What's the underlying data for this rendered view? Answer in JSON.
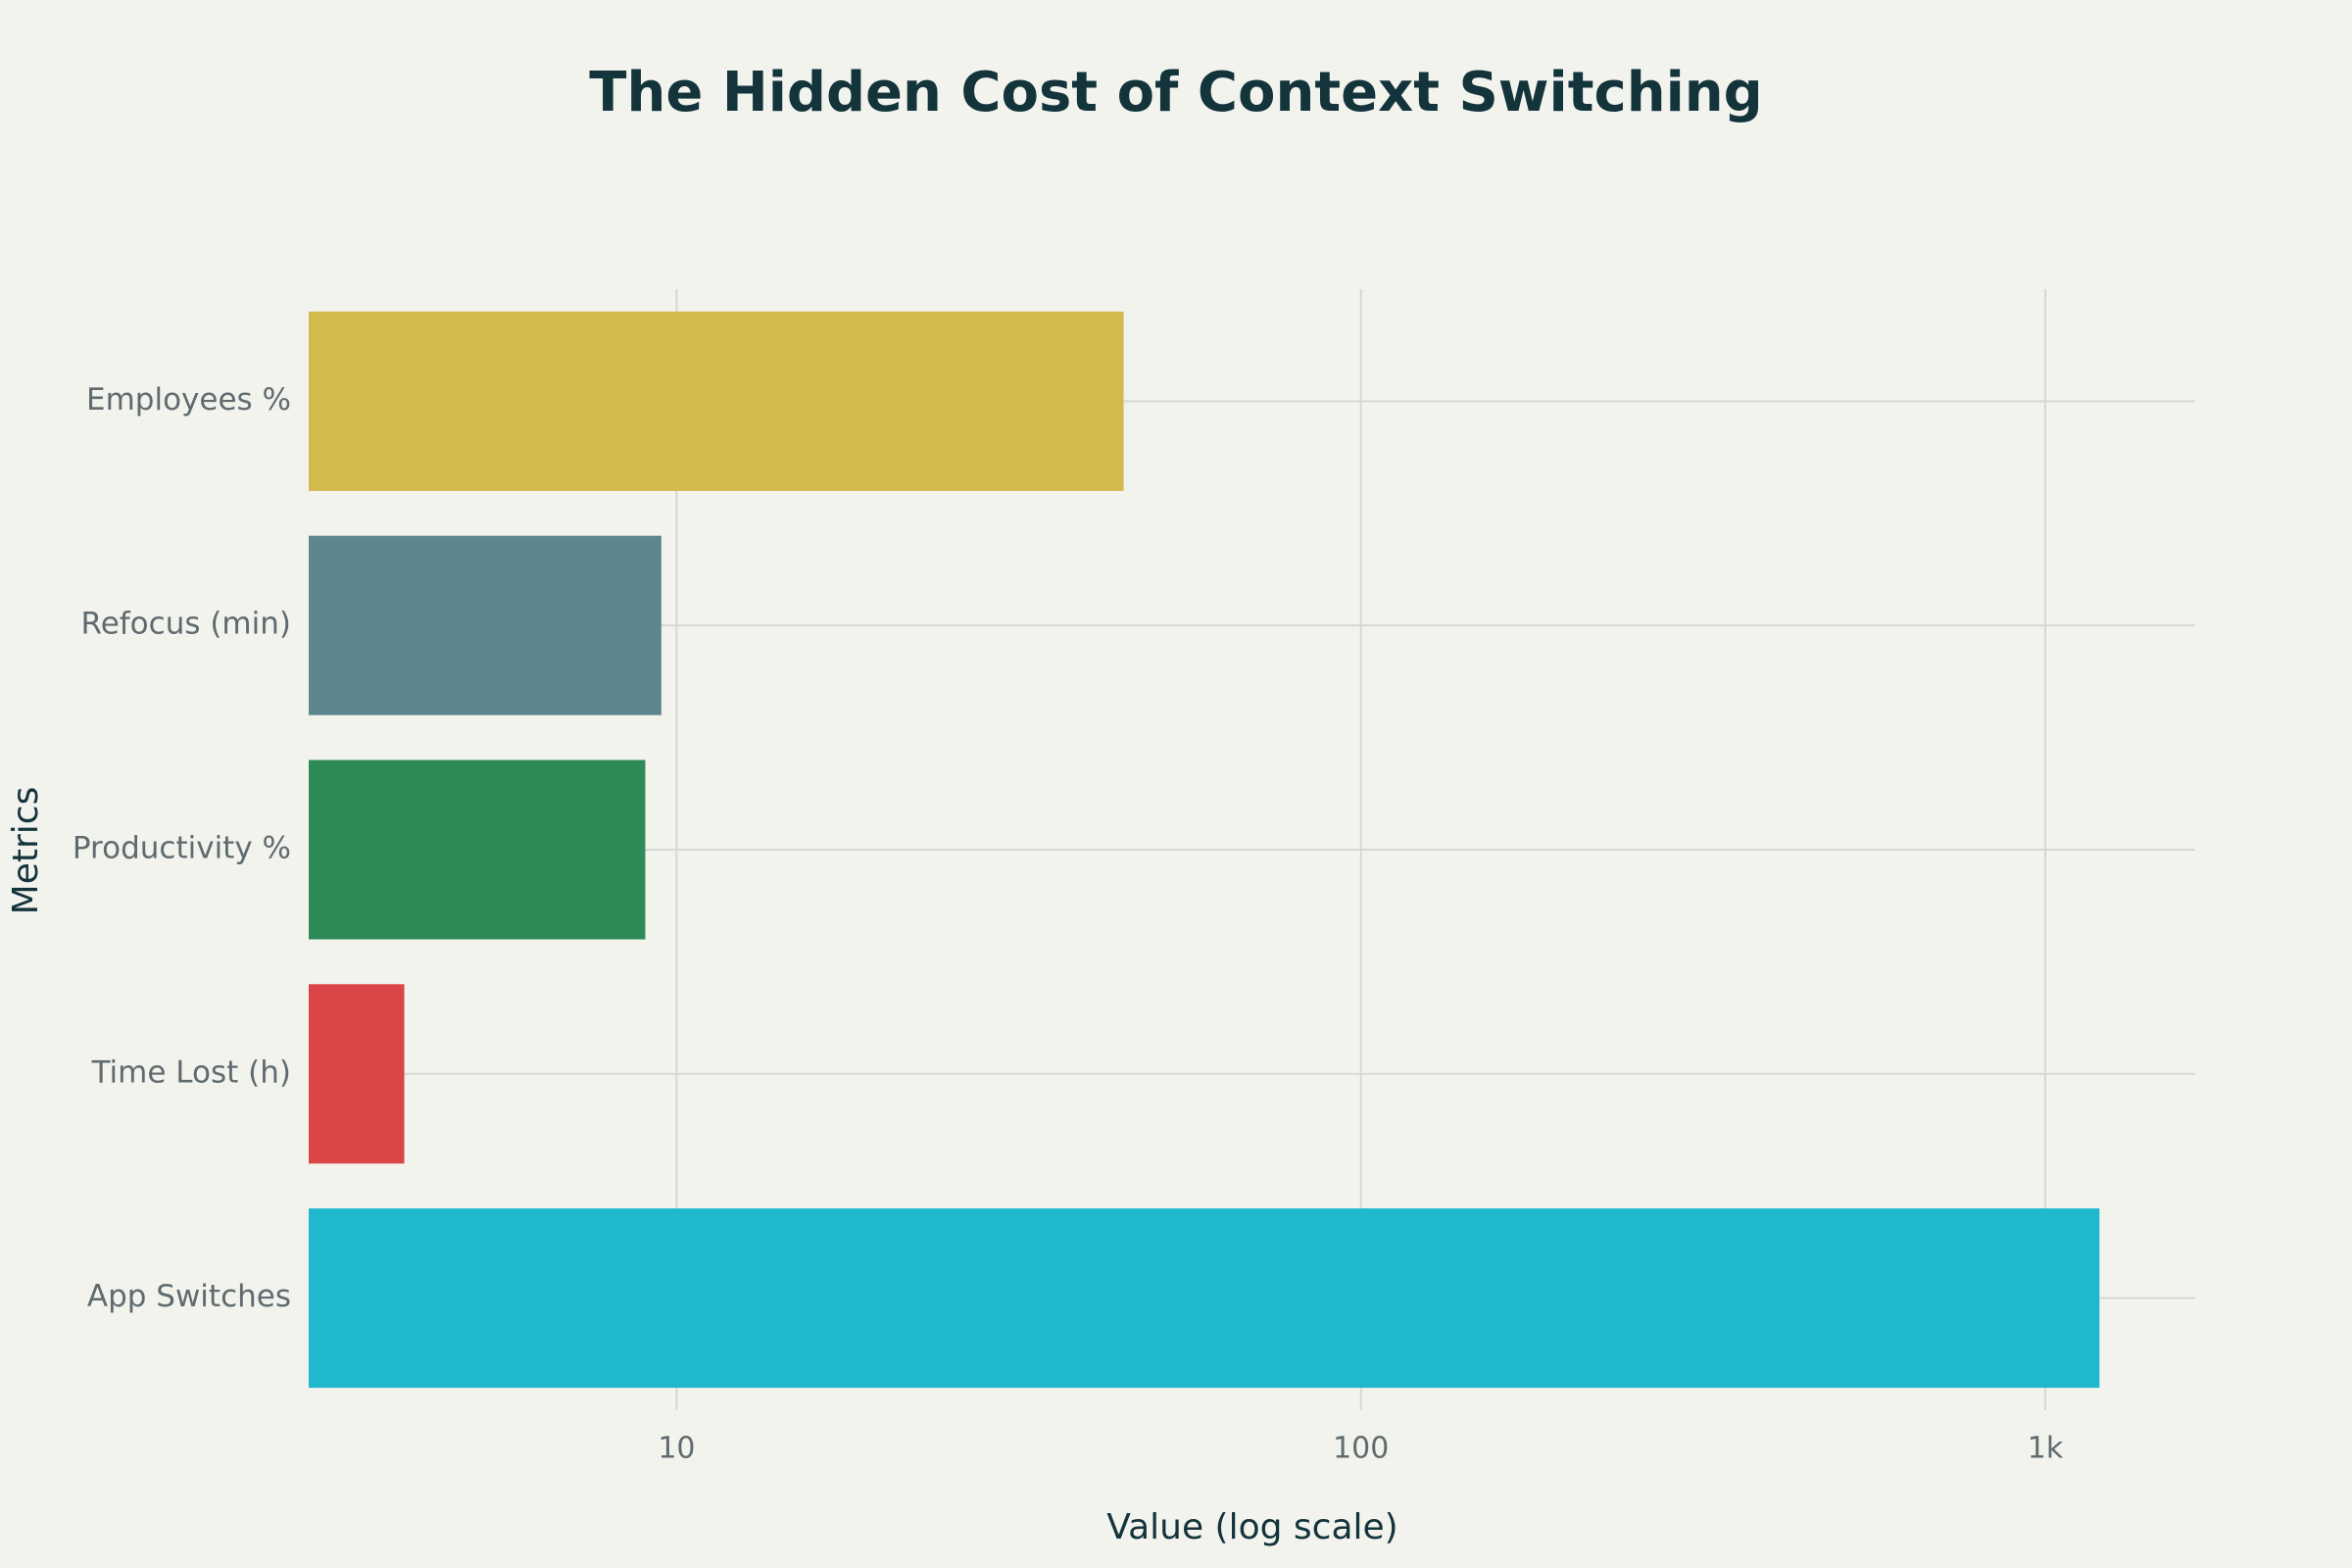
{
  "chart_data": {
    "type": "bar",
    "orientation": "horizontal",
    "title": "The Hidden Cost of Context Switching",
    "x_label": "Value (log scale)",
    "y_label": "Metrics",
    "categories": [
      "Employees %",
      "Refocus (min)",
      "Productivity %",
      "Time Lost (h)",
      "App Switches"
    ],
    "values": [
      45,
      9.5,
      9,
      4,
      1200
    ],
    "colors": [
      "#D2BA4C",
      "#5D878F",
      "#2E8B57",
      "#DB4545",
      "#1FB8CD"
    ],
    "xscale": "log",
    "xlim": [
      2.9,
      1656
    ],
    "xticks": [
      10,
      100,
      {
        "value": 1000,
        "label": "1k"
      }
    ],
    "grid": true
  }
}
